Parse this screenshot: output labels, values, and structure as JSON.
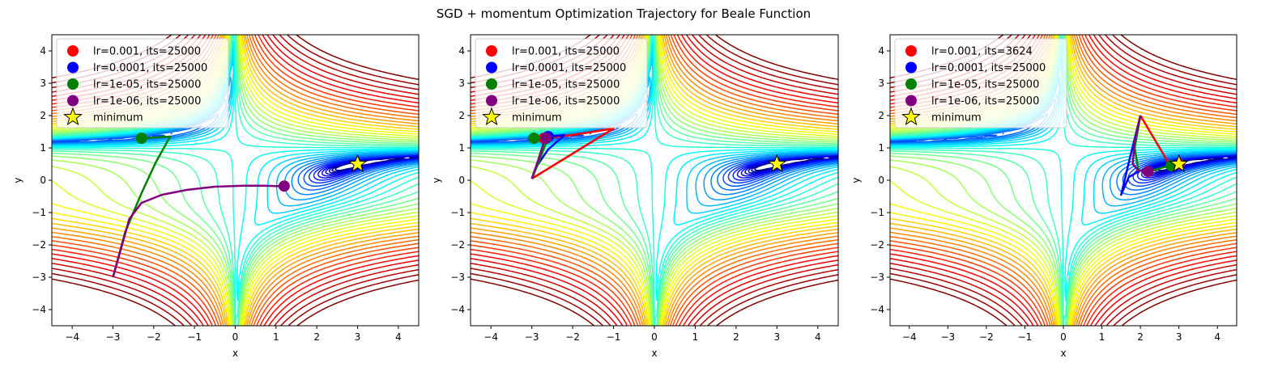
{
  "figure": {
    "suptitle": "SGD + momentum Optimization Trajectory for Beale Function"
  },
  "chart_data": [
    {
      "type": "line",
      "subtype": "contour-with-trajectories",
      "xlabel": "x",
      "ylabel": "y",
      "xlim": [
        -4.5,
        4.5
      ],
      "ylim": [
        -4.5,
        4.5
      ],
      "xticks": [
        -4,
        -3,
        -2,
        -1,
        0,
        1,
        2,
        3,
        4
      ],
      "yticks": [
        -4,
        -3,
        -2,
        -1,
        0,
        1,
        2,
        3,
        4
      ],
      "grid": false,
      "legend_position": "top-left",
      "contour_colormap": "jet",
      "minimum": {
        "x": 3,
        "y": 0.5,
        "label": "minimum",
        "color": "#ffff00"
      },
      "series": [
        {
          "name": "lr=0.001, its=25000",
          "color": "#ff0000",
          "points": []
        },
        {
          "name": "lr=0.0001, its=25000",
          "color": "#0000ff",
          "points": []
        },
        {
          "name": "lr=1e-05, its=25000",
          "color": "#008000",
          "points": [
            [
              -3,
              -3
            ],
            [
              -2.7,
              -1.6
            ],
            [
              -2.3,
              -0.4
            ],
            [
              -1.95,
              0.55
            ],
            [
              -1.6,
              1.35
            ],
            [
              -2.3,
              1.3
            ]
          ]
        },
        {
          "name": "lr=1e-06, its=25000",
          "color": "#800080",
          "points": [
            [
              -3,
              -3
            ],
            [
              -2.8,
              -2.1
            ],
            [
              -2.6,
              -1.2
            ],
            [
              -2.3,
              -0.7
            ],
            [
              -1.8,
              -0.45
            ],
            [
              -1.2,
              -0.3
            ],
            [
              -0.5,
              -0.2
            ],
            [
              0.2,
              -0.17
            ],
            [
              0.7,
              -0.17
            ],
            [
              1.0,
              -0.18
            ],
            [
              1.2,
              -0.18
            ]
          ]
        }
      ]
    },
    {
      "type": "line",
      "subtype": "contour-with-trajectories",
      "xlabel": "x",
      "ylabel": "y",
      "xlim": [
        -4.5,
        4.5
      ],
      "ylim": [
        -4.5,
        4.5
      ],
      "xticks": [
        -4,
        -3,
        -2,
        -1,
        0,
        1,
        2,
        3,
        4
      ],
      "yticks": [
        -4,
        -3,
        -2,
        -1,
        0,
        1,
        2,
        3,
        4
      ],
      "grid": false,
      "legend_position": "top-left",
      "contour_colormap": "jet",
      "minimum": {
        "x": 3,
        "y": 0.5,
        "label": "minimum",
        "color": "#ffff00"
      },
      "series": [
        {
          "name": "lr=0.001, its=25000",
          "color": "#ff0000",
          "points": [
            [
              -3,
              0.05
            ],
            [
              -1.0,
              1.6
            ],
            [
              -2.0,
              1.4
            ],
            [
              -2.7,
              1.3
            ]
          ]
        },
        {
          "name": "lr=0.0001, its=25000",
          "color": "#0000ff",
          "points": [
            [
              -3,
              0.05
            ],
            [
              -2.9,
              0.4
            ],
            [
              -2.6,
              0.95
            ],
            [
              -2.2,
              1.4
            ],
            [
              -2.6,
              1.35
            ]
          ]
        },
        {
          "name": "lr=1e-05, its=25000",
          "color": "#008000",
          "points": [
            [
              -3,
              0.05
            ],
            [
              -2.85,
              0.5
            ],
            [
              -2.7,
              1.0
            ],
            [
              -2.6,
              1.3
            ],
            [
              -2.95,
              1.3
            ]
          ]
        },
        {
          "name": "lr=1e-06, its=25000",
          "color": "#800080",
          "points": [
            [
              -3,
              0.05
            ],
            [
              -2.85,
              0.6
            ],
            [
              -2.7,
              1.2
            ],
            [
              -2.65,
              1.3
            ]
          ]
        }
      ]
    },
    {
      "type": "line",
      "subtype": "contour-with-trajectories",
      "xlabel": "x",
      "ylabel": "y",
      "xlim": [
        -4.5,
        4.5
      ],
      "ylim": [
        -4.5,
        4.5
      ],
      "xticks": [
        -4,
        -3,
        -2,
        -1,
        0,
        1,
        2,
        3,
        4
      ],
      "yticks": [
        -4,
        -3,
        -2,
        -1,
        0,
        1,
        2,
        3,
        4
      ],
      "grid": false,
      "legend_position": "top-left",
      "contour_colormap": "jet",
      "minimum": {
        "x": 3,
        "y": 0.5,
        "label": "minimum",
        "color": "#ffff00"
      },
      "series": [
        {
          "name": "lr=0.001, its=3624",
          "color": "#ff0000",
          "points": [
            [
              2,
              2
            ],
            [
              2.7,
              0.6
            ],
            [
              3,
              0.5
            ]
          ]
        },
        {
          "name": "lr=0.0001, its=25000",
          "color": "#0000ff",
          "points": [
            [
              2,
              2
            ],
            [
              1.75,
              0.8
            ],
            [
              1.5,
              -0.45
            ],
            [
              1.7,
              0.1
            ],
            [
              2.0,
              0.3
            ],
            [
              2.4,
              0.4
            ],
            [
              2.8,
              0.48
            ],
            [
              2.9,
              0.48
            ]
          ]
        },
        {
          "name": "lr=1e-05, its=25000",
          "color": "#008000",
          "points": [
            [
              2,
              2
            ],
            [
              1.85,
              1.0
            ],
            [
              1.95,
              0.3
            ],
            [
              2.3,
              0.3
            ],
            [
              2.6,
              0.4
            ],
            [
              2.8,
              0.45
            ]
          ]
        },
        {
          "name": "lr=1e-06, its=25000",
          "color": "#800080",
          "points": [
            [
              2,
              2
            ],
            [
              1.85,
              1.2
            ],
            [
              1.8,
              0.5
            ],
            [
              1.95,
              0.3
            ],
            [
              2.2,
              0.27
            ]
          ]
        }
      ]
    }
  ]
}
